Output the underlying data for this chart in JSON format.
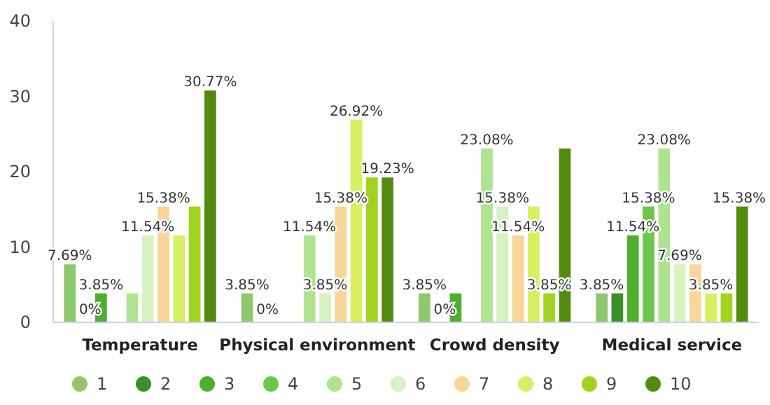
{
  "chart_data": {
    "type": "bar",
    "categories": [
      "Temperature",
      "Physical environment",
      "Crowd density",
      "Medical service"
    ],
    "ylim": [
      0,
      40
    ],
    "yticks": [
      0,
      10,
      20,
      30,
      40
    ],
    "grid": false,
    "annotations": [
      {
        "text": "0%",
        "x": "Temperature",
        "y": 0
      },
      {
        "text": "0%",
        "x": "Physical environment",
        "y": 0
      },
      {
        "text": "0%",
        "x": "Crowd density",
        "y": 0
      }
    ],
    "legend": "bottom",
    "series": [
      {
        "name": "1",
        "color": "#8dc86f",
        "values": [
          7.69,
          3.85,
          3.85,
          3.85
        ],
        "value_labels": [
          "7.69%",
          "3.85%",
          "3.85%",
          "3.85%"
        ]
      },
      {
        "name": "2",
        "color": "#3a8f2a",
        "values": [
          0,
          0,
          0,
          3.85
        ],
        "value_labels": [
          null,
          null,
          null,
          null
        ]
      },
      {
        "name": "3",
        "color": "#4daf2e",
        "values": [
          3.85,
          0,
          3.85,
          11.54
        ],
        "value_labels": [
          "3.85%",
          null,
          null,
          "11.54%"
        ]
      },
      {
        "name": "4",
        "color": "#6cc64a",
        "values": [
          0,
          0,
          0,
          15.38
        ],
        "value_labels": [
          null,
          null,
          null,
          "15.38%"
        ]
      },
      {
        "name": "5",
        "color": "#b0e391",
        "values": [
          3.85,
          11.54,
          23.08,
          23.08
        ],
        "value_labels": [
          null,
          "11.54%",
          "23.08%",
          "23.08%"
        ]
      },
      {
        "name": "6",
        "color": "#d5f2c0",
        "values": [
          11.54,
          3.85,
          15.38,
          7.69
        ],
        "value_labels": [
          "11.54%",
          "3.85%",
          "15.38%",
          "7.69%"
        ]
      },
      {
        "name": "7",
        "color": "#f8d598",
        "values": [
          15.38,
          15.38,
          11.54,
          7.69
        ],
        "value_labels": [
          "15.38%",
          "15.38%",
          "11.54%",
          null
        ]
      },
      {
        "name": "8",
        "color": "#d6ef63",
        "values": [
          11.54,
          26.92,
          15.38,
          3.85
        ],
        "value_labels": [
          null,
          "26.92%",
          null,
          "3.85%"
        ]
      },
      {
        "name": "9",
        "color": "#9fd320",
        "values": [
          15.38,
          19.23,
          3.85,
          3.85
        ],
        "value_labels": [
          null,
          null,
          "3.85%",
          null
        ]
      },
      {
        "name": "10",
        "color": "#558a10",
        "values": [
          30.77,
          19.23,
          23.08,
          15.38
        ],
        "value_labels": [
          "30.77%",
          "19.23%",
          null,
          "15.38%"
        ]
      }
    ]
  }
}
